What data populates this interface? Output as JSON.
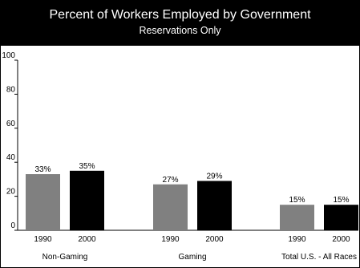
{
  "chart_data": {
    "type": "bar",
    "title": "Percent of Workers Employed by Government",
    "subtitle": "Reservations Only",
    "groups": [
      "Non-Gaming",
      "Gaming",
      "Total U.S. - All Races"
    ],
    "series": [
      {
        "name": "1990",
        "values": [
          33,
          27,
          15
        ]
      },
      {
        "name": "2000",
        "values": [
          35,
          29,
          15
        ]
      }
    ],
    "data_labels": [
      [
        "33%",
        "35%"
      ],
      [
        "27%",
        "29%"
      ],
      [
        "15%",
        "15%"
      ]
    ],
    "ylim": [
      0,
      100
    ],
    "yticks": [
      0,
      20,
      40,
      60,
      80,
      100
    ],
    "grid": false,
    "legend": "none",
    "colors": {
      "1990": "#808080",
      "2000": "#000000"
    }
  }
}
